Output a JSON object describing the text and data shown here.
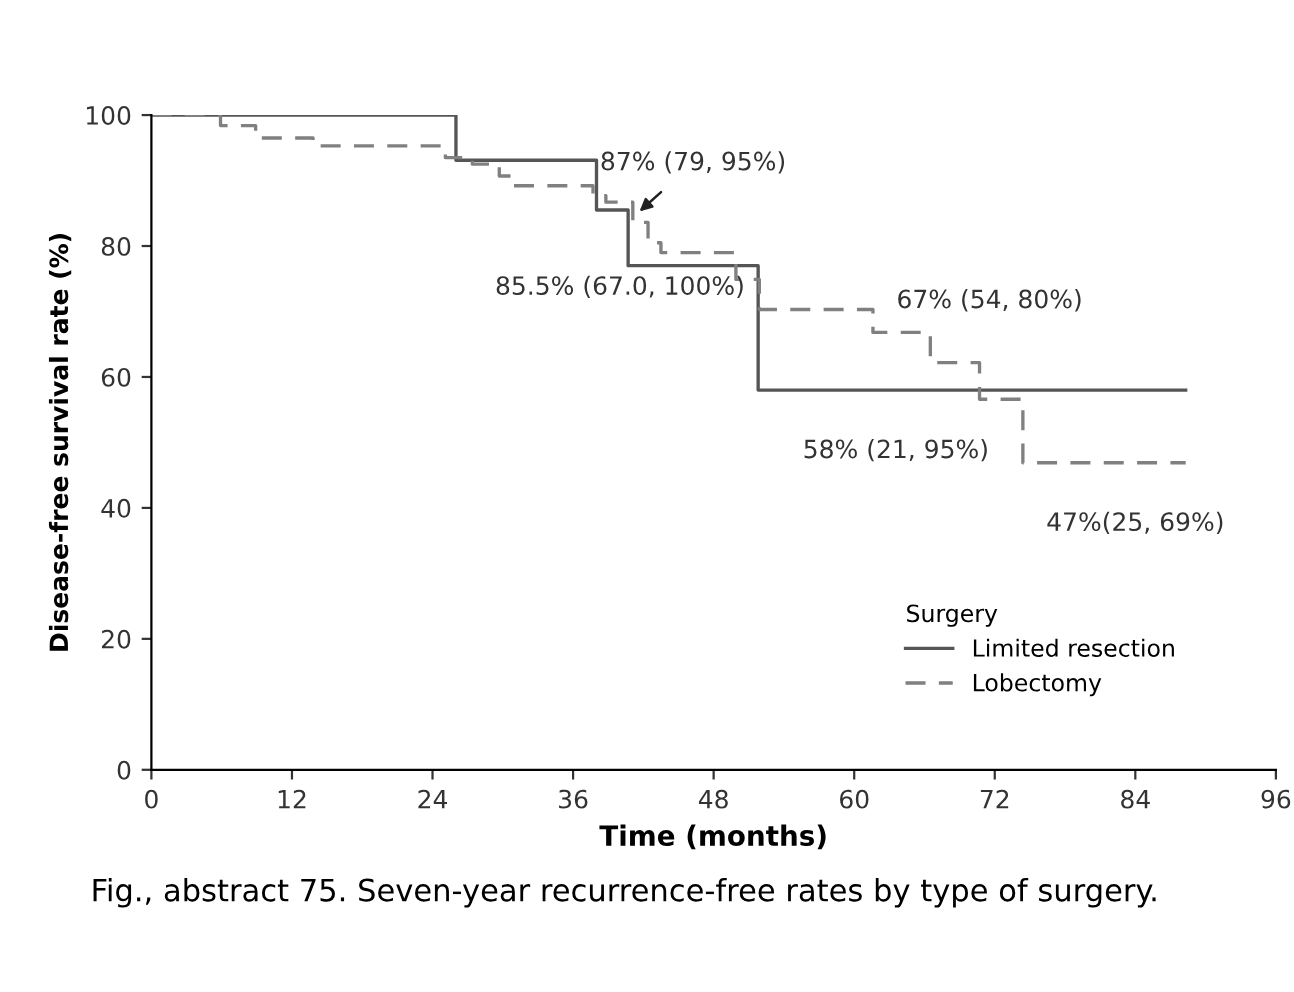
{
  "chart_data": {
    "type": "step",
    "xlabel": "Time (months)",
    "ylabel": "Disease-free survival rate (%)",
    "xlim": [
      0,
      96
    ],
    "xticks": [
      0,
      12,
      24,
      36,
      48,
      60,
      72,
      84,
      96
    ],
    "ylim": [
      0,
      100
    ],
    "yticks": [
      0,
      20,
      40,
      60,
      80,
      100
    ],
    "legend": "bottom right",
    "legend_title": "Surgery",
    "grid": false,
    "series": [
      {
        "name": "Limited resection",
        "color": "#555555",
        "line_style": "solid",
        "x": [
          0,
          26,
          38,
          40.7,
          51.8,
          88.3
        ],
        "values": [
          100,
          93.1,
          85.5,
          77,
          58,
          58
        ]
      },
      {
        "name": "Lobectomy",
        "color": "#808080",
        "line_style": "dashed",
        "x": [
          0,
          5.9,
          8.9,
          13.8,
          25.1,
          27.4,
          29.7,
          30.8,
          37.7,
          38.8,
          41.1,
          42.4,
          43.5,
          45,
          49.9,
          51.9,
          61.6,
          66.5,
          70.7,
          74.4,
          88.3
        ],
        "values": [
          100,
          98.4,
          96.5,
          95.3,
          93.5,
          92.5,
          90.7,
          89.2,
          87.7,
          86.7,
          83.6,
          80.5,
          79,
          79,
          74.9,
          70.3,
          66.8,
          62.2,
          56.6,
          46.9,
          46.9
        ]
      }
    ],
    "annotations": [
      {
        "text": "87% (79, 95%)",
        "x": 41.5,
        "y": 85
      },
      {
        "text": "85.5% (67.0, 100%)",
        "x": 40,
        "y": 85.5
      },
      {
        "text": "67% (54, 80%)",
        "x": 61.6,
        "y": 70.3
      },
      {
        "text": "58% (21, 95%)",
        "x": 60,
        "y": 58
      },
      {
        "text": "47%(25, 69%)",
        "x": 84,
        "y": 46.9
      },
      "Fig., abstract 75. Seven-year recurrence-free rates by type of surgery."
    ]
  }
}
